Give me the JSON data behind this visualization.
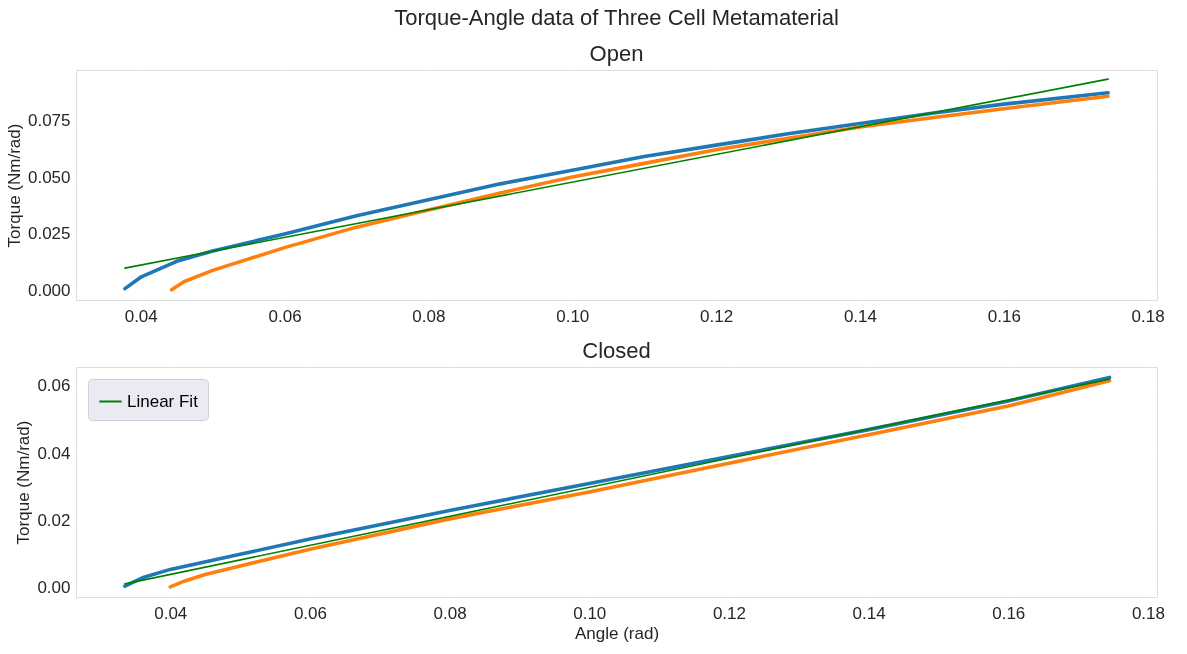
{
  "chart_data": [
    {
      "type": "line",
      "title": "Torque-Angle data of Three Cell Metamaterial",
      "subtitle": "Open",
      "ylabel": "Torque (Nm/rad)",
      "xlim": [
        0.031,
        0.1813
      ],
      "ylim": [
        -0.004,
        0.097
      ],
      "xticks": [
        0.04,
        0.06,
        0.08,
        {
          "value": 0.1,
          "label": "0.10"
        },
        0.12,
        0.14,
        0.16,
        0.18
      ],
      "yticks": [
        {
          "value": 0,
          "label": "0.000"
        },
        {
          "value": 0.025,
          "label": "0.025"
        },
        {
          "value": 0.05,
          "label": "0.050"
        },
        {
          "value": 0.075,
          "label": "0.075"
        }
      ],
      "grid": true,
      "legend": false,
      "marker": "none",
      "line_style": "solid",
      "series": [
        {
          "color": "#1f77b4",
          "x": [
            0.0378,
            0.04,
            0.045,
            0.05,
            0.06,
            0.07,
            0.08,
            0.09,
            0.1,
            0.11,
            0.12,
            0.13,
            0.14,
            0.15,
            0.16,
            0.1745
          ],
          "values": [
            0.001,
            0.006,
            0.013,
            0.0175,
            0.025,
            0.033,
            0.04,
            0.047,
            0.053,
            0.059,
            0.064,
            0.069,
            0.0735,
            0.078,
            0.082,
            0.087
          ]
        },
        {
          "color": "#ff7f0e",
          "x": [
            0.0443,
            0.046,
            0.05,
            0.06,
            0.07,
            0.08,
            0.09,
            0.1,
            0.11,
            0.12,
            0.13,
            0.14,
            0.15,
            0.16,
            0.1745
          ],
          "values": [
            0.0005,
            0.004,
            0.009,
            0.019,
            0.028,
            0.0355,
            0.043,
            0.05,
            0.056,
            0.062,
            0.067,
            0.072,
            0.076,
            0.08,
            0.0855
          ]
        },
        {
          "color": "#008000",
          "x": [
            0.0378,
            0.1745
          ],
          "values": [
            0.01,
            0.093
          ]
        }
      ]
    },
    {
      "type": "line",
      "title": "Closed",
      "xlabel": "Angle (rad)",
      "ylabel": "Torque (Nm/rad)",
      "xlim": [
        0.0265,
        0.1813
      ],
      "ylim": [
        -0.0027,
        0.0656
      ],
      "xticks": [
        0.04,
        0.06,
        0.08,
        {
          "value": 0.1,
          "label": "0.10"
        },
        0.12,
        0.14,
        0.16,
        0.18
      ],
      "yticks": [
        {
          "value": 0,
          "label": "0.00"
        },
        {
          "value": 0.02,
          "label": "0.02"
        },
        {
          "value": 0.04,
          "label": "0.04"
        },
        {
          "value": 0.06,
          "label": "0.06"
        }
      ],
      "grid": true,
      "legend": "top left",
      "marker": "none",
      "line_style": "solid",
      "series": [
        {
          "color": "#1f77b4",
          "x": [
            0.0335,
            0.036,
            0.04,
            0.05,
            0.06,
            0.08,
            0.1,
            0.12,
            0.14,
            0.16,
            0.1745
          ],
          "values": [
            0.0005,
            0.003,
            0.0055,
            0.01,
            0.0145,
            0.023,
            0.031,
            0.039,
            0.047,
            0.0555,
            0.0625
          ]
        },
        {
          "color": "#ff7f0e",
          "x": [
            0.04,
            0.042,
            0.045,
            0.05,
            0.06,
            0.08,
            0.1,
            0.12,
            0.14,
            0.16,
            0.1745
          ],
          "values": [
            0.0003,
            0.002,
            0.004,
            0.0065,
            0.0115,
            0.0205,
            0.0285,
            0.037,
            0.0455,
            0.054,
            0.0615
          ]
        },
        {
          "name": "Linear Fit",
          "color": "#008000",
          "x": [
            0.0335,
            0.1745
          ],
          "values": [
            0.0012,
            0.062
          ]
        }
      ]
    }
  ]
}
